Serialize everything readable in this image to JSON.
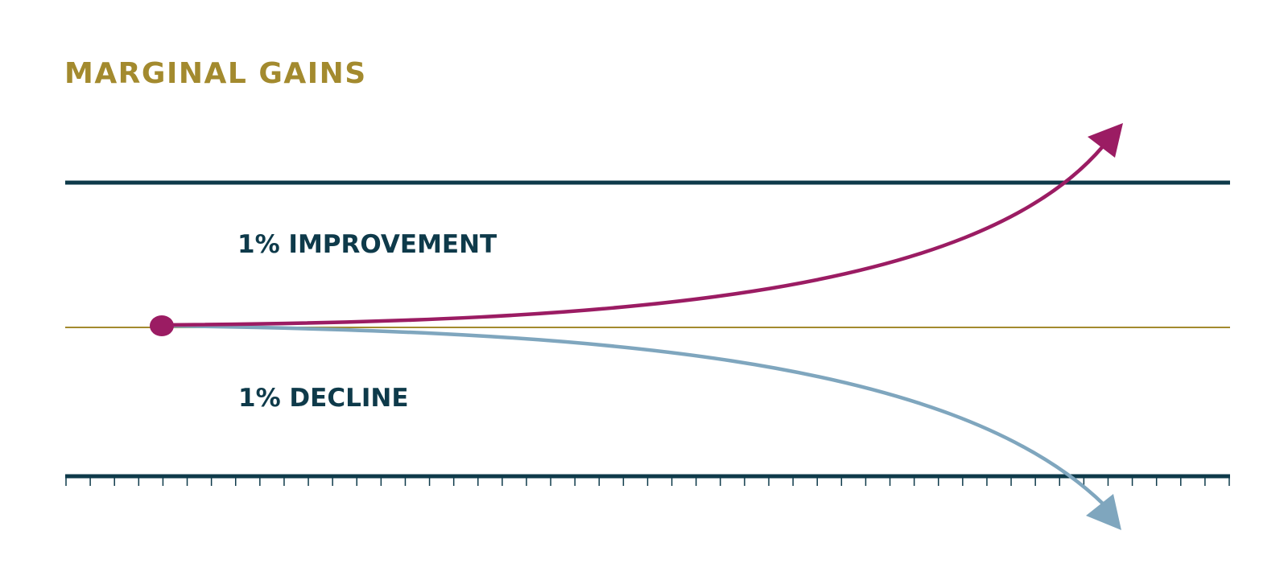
{
  "title": "MARGINAL GAINS",
  "labels": {
    "improvement": "1% IMPROVEMENT",
    "decline": "1% DECLINE"
  },
  "colors": {
    "title": "#a38a2e",
    "text": "#0e3a4a",
    "rule": "#0e3a4a",
    "baseline": "#a38a2e",
    "improvement": "#9b1c63",
    "decline": "#7fa6be"
  },
  "timeline": {
    "tick_count": 48
  }
}
